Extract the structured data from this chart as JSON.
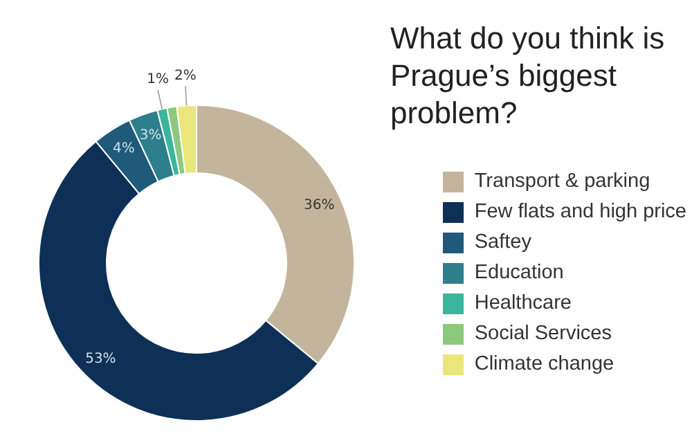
{
  "chart_data": {
    "type": "donut",
    "title": "What do you think is Prague’s biggest problem?",
    "categories": [
      "Transport & parking",
      "Few flats and high price",
      "Saftey",
      "Education",
      "Healthcare",
      "Social Services",
      "Climate change"
    ],
    "values": [
      36,
      53,
      4,
      3,
      1,
      1,
      2
    ],
    "value_labels": [
      "36%",
      "53%",
      "4%",
      "3%",
      "1%",
      null,
      "2%"
    ],
    "colors": [
      "#c2b59b",
      "#0e2f56",
      "#1f5a7a",
      "#2e7f8c",
      "#3ab79a",
      "#8cc87e",
      "#ebe67a"
    ],
    "legend": "right"
  }
}
